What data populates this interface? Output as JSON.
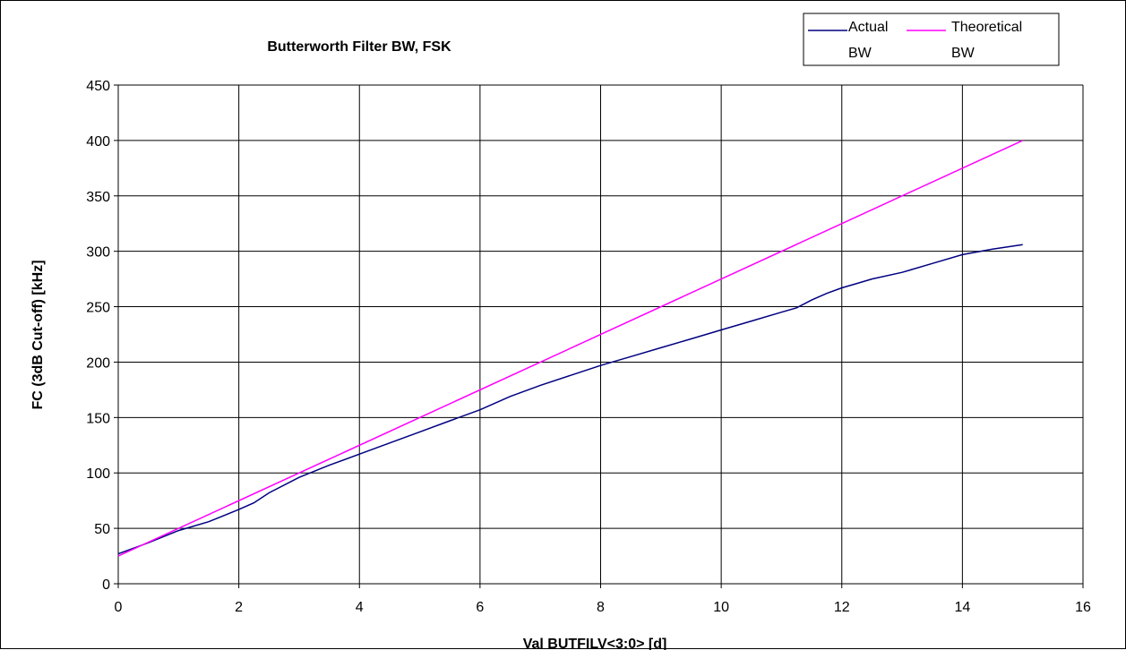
{
  "chart_data": {
    "type": "line",
    "title": "Butterworth Filter BW, FSK",
    "xlabel": "Val BUTFILV<3:0> [d]",
    "ylabel": "FC (3dB Cut-off) [kHz]",
    "xlim": [
      0,
      16
    ],
    "ylim": [
      0,
      450
    ],
    "xticks": [
      0,
      2,
      4,
      6,
      8,
      10,
      12,
      14,
      16
    ],
    "yticks": [
      0,
      50,
      100,
      150,
      200,
      250,
      300,
      350,
      400,
      450
    ],
    "grid": true,
    "legend_position": "top-right",
    "series": [
      {
        "name": "Actual BW",
        "color": "#000080",
        "x": [
          0,
          0.5,
          1,
          1.5,
          2,
          2.25,
          2.5,
          3,
          3.5,
          4,
          4.5,
          5,
          5.5,
          6,
          6.5,
          7,
          7.5,
          8,
          8.5,
          9,
          9.5,
          10,
          10.5,
          11,
          11.25,
          11.5,
          11.75,
          12,
          12.25,
          12.5,
          13,
          13.5,
          14,
          14.5,
          15
        ],
        "y": [
          27,
          37,
          48,
          56,
          67,
          73,
          82,
          96,
          107,
          117,
          127,
          137,
          147,
          157,
          169,
          179,
          188,
          197,
          205,
          213,
          221,
          229,
          237,
          245,
          249,
          256,
          262,
          267,
          271,
          275,
          281,
          289,
          297,
          302,
          306
        ]
      },
      {
        "name": "Theoretical BW",
        "color": "#ff00ff",
        "x": [
          0,
          15
        ],
        "y": [
          25,
          400
        ]
      }
    ]
  },
  "legend": {
    "items": [
      {
        "line1": "Actual",
        "line2": "BW",
        "color": "#000080"
      },
      {
        "line1": "Theoretical",
        "line2": "BW",
        "color": "#ff00ff"
      }
    ]
  }
}
